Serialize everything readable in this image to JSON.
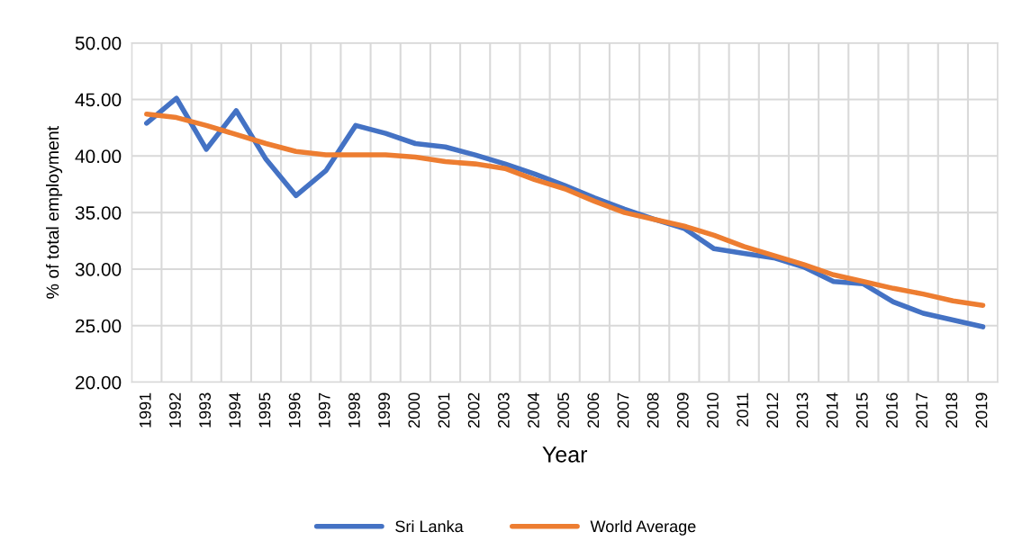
{
  "chart_data": {
    "type": "line",
    "xlabel": "Year",
    "ylabel": "% of total employment",
    "categories": [
      "1991",
      "1992",
      "1993",
      "1994",
      "1995",
      "1996",
      "1997",
      "1998",
      "1999",
      "2000",
      "2001",
      "2002",
      "2003",
      "2004",
      "2005",
      "2006",
      "2007",
      "2008",
      "2009",
      "2010",
      "2011",
      "2012",
      "2013",
      "2014",
      "2015",
      "2016",
      "2017",
      "2018",
      "2019"
    ],
    "series": [
      {
        "name": "Sri Lanka",
        "color": "#4472c4",
        "values": [
          42.9,
          45.1,
          40.6,
          44.0,
          39.7,
          36.5,
          38.7,
          42.7,
          42.0,
          41.1,
          40.8,
          40.1,
          39.3,
          38.4,
          37.4,
          36.3,
          35.3,
          34.4,
          33.6,
          31.8,
          31.4,
          31.0,
          30.2,
          28.9,
          28.7,
          27.1,
          26.1,
          25.5,
          24.9
        ]
      },
      {
        "name": "World Average",
        "color": "#ed7d31",
        "values": [
          43.7,
          43.4,
          42.7,
          41.9,
          41.1,
          40.4,
          40.1,
          40.1,
          40.1,
          39.9,
          39.5,
          39.3,
          38.9,
          37.9,
          37.1,
          36.0,
          35.0,
          34.4,
          33.8,
          33.0,
          32.0,
          31.2,
          30.4,
          29.5,
          28.9,
          28.3,
          27.8,
          27.2,
          26.8
        ]
      }
    ],
    "ylim": [
      20,
      50
    ],
    "yticks": [
      {
        "value": 20,
        "label": "20.00"
      },
      {
        "value": 25,
        "label": "25.00"
      },
      {
        "value": 30,
        "label": "30.00"
      },
      {
        "value": 35,
        "label": "35.00"
      },
      {
        "value": 40,
        "label": "40.00"
      },
      {
        "value": 45,
        "label": "45.00"
      },
      {
        "value": 50,
        "label": "50.00"
      }
    ],
    "grid": true,
    "legend": "bottom",
    "marker": "none",
    "line_style": "solid"
  }
}
